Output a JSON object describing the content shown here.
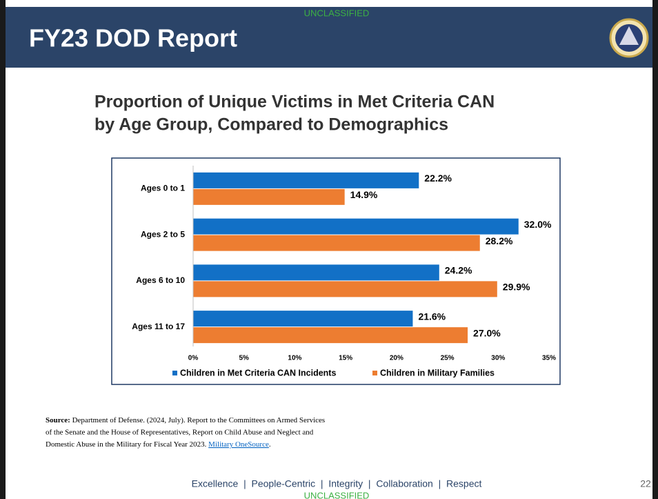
{
  "header": {
    "marking_top": "UNCLASSIFIED",
    "title": "FY23 DOD Report"
  },
  "chart_data": {
    "type": "hbar",
    "title_lines": [
      "Proportion of Unique Victims in Met Criteria CAN",
      "by Age Group, Compared to Demographics"
    ],
    "categories": [
      "Ages 0 to 1",
      "Ages 2 to 5",
      "Ages 6 to 10",
      "Ages 11 to 17"
    ],
    "series": [
      {
        "name": "Children in Met Criteria CAN Incidents",
        "color": "#1270c6",
        "values": [
          22.2,
          32.0,
          24.2,
          21.6
        ],
        "value_labels": [
          "22.2%",
          "32.0%",
          "24.2%",
          "21.6%"
        ]
      },
      {
        "name": "Children in Military Families",
        "color": "#ed7d31",
        "values": [
          14.9,
          28.2,
          29.9,
          27.0
        ],
        "value_labels": [
          "14.9%",
          "28.2%",
          "29.9%",
          "27.0%"
        ]
      }
    ],
    "xlim": [
      0,
      35
    ],
    "xticks": [
      {
        "value": 0,
        "label": "0%"
      },
      {
        "value": 5,
        "label": "5%"
      },
      {
        "value": 10,
        "label": "10%"
      },
      {
        "value": 15,
        "label": "15%"
      },
      {
        "value": 20,
        "label": "20%"
      },
      {
        "value": 25,
        "label": "25%"
      },
      {
        "value": 30,
        "label": "30%"
      },
      {
        "value": 35,
        "label": "35%"
      }
    ],
    "grid": false,
    "legend": "bottom"
  },
  "source": {
    "label": "Source:",
    "lines": [
      " Department of Defense. (2024, July). Report to the Committees on Armed Services",
      "of the Senate and the House of Representatives, Report on Child Abuse and Neglect and",
      "Domestic Abuse in the Military for Fiscal Year 2023. "
    ],
    "link": "Military OneSource",
    "end": "."
  },
  "footer": {
    "values": "Excellence  |  People-Centric  |  Integrity  |  Collaboration  |  Respect",
    "page": "22",
    "marking_bottom": "UNCLASSIFIED"
  }
}
